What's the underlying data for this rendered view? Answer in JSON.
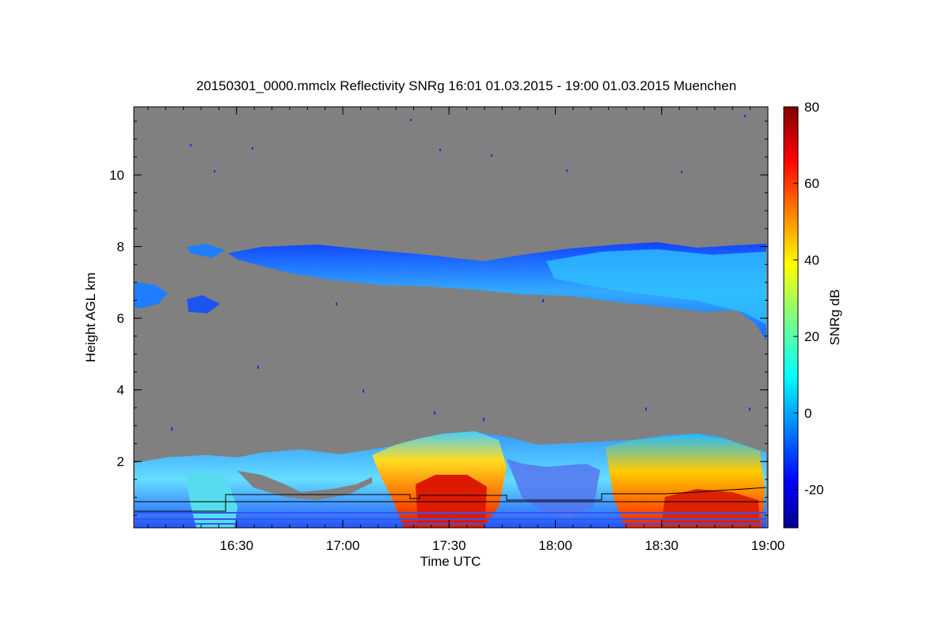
{
  "chart_data": {
    "type": "heatmap",
    "title": "20150301_0000.mmclx Reflectivity SNRg   16:01 01.03.2015 - 19:00 01.03.2015 Muenchen",
    "xlabel": "Time UTC",
    "ylabel": "Height AGL km",
    "x_ticks": [
      "16:30",
      "17:00",
      "17:30",
      "18:00",
      "18:30",
      "19:00"
    ],
    "y_ticks": [
      "2",
      "4",
      "6",
      "8",
      "10"
    ],
    "xlim": [
      "16:01",
      "19:00"
    ],
    "ylim_km": [
      0.15,
      11.9
    ],
    "background_color": "#808080",
    "colorbar": {
      "label": "SNRg dB",
      "min": -30,
      "max": 80,
      "ticks": [
        "-20",
        "0",
        "20",
        "40",
        "60",
        "80"
      ],
      "colormap": "jet"
    }
  }
}
